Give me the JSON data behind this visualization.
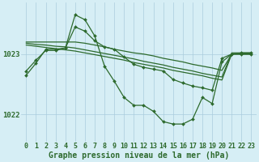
{
  "xlabel": "Graphe pression niveau de la mer (hPa)",
  "hours": [
    0,
    1,
    2,
    3,
    4,
    5,
    6,
    7,
    8,
    9,
    10,
    11,
    12,
    13,
    14,
    15,
    16,
    17,
    18,
    19,
    20,
    21,
    22,
    23
  ],
  "line_zigzag": [
    1022.65,
    1022.85,
    1023.08,
    1023.08,
    1023.1,
    1023.65,
    1023.57,
    1023.3,
    1022.8,
    1022.55,
    1022.28,
    1022.15,
    1022.15,
    1022.05,
    1021.88,
    1021.84,
    1021.84,
    1021.92,
    1022.28,
    1022.18,
    1022.87,
    1023.0,
    1023.02,
    1023.02
  ],
  "line_diag1": [
    1023.2,
    1023.2,
    1023.2,
    1023.2,
    1023.2,
    1023.2,
    1023.18,
    1023.15,
    1023.12,
    1023.08,
    1023.05,
    1023.02,
    1023.0,
    1022.97,
    1022.93,
    1022.9,
    1022.87,
    1022.83,
    1022.8,
    1022.77,
    1022.73,
    1023.0,
    1023.0,
    1023.0
  ],
  "line_diag2": [
    1023.18,
    1023.16,
    1023.15,
    1023.13,
    1023.12,
    1023.1,
    1023.07,
    1023.04,
    1023.01,
    1022.98,
    1022.95,
    1022.92,
    1022.88,
    1022.85,
    1022.82,
    1022.78,
    1022.75,
    1022.72,
    1022.68,
    1022.65,
    1022.62,
    1023.02,
    1023.02,
    1023.02
  ],
  "line_diag3": [
    1023.15,
    1023.13,
    1023.11,
    1023.09,
    1023.07,
    1023.05,
    1023.02,
    1022.99,
    1022.96,
    1022.93,
    1022.9,
    1022.86,
    1022.83,
    1022.8,
    1022.77,
    1022.73,
    1022.7,
    1022.67,
    1022.64,
    1022.6,
    1022.57,
    1023.0,
    1023.0,
    1023.0
  ],
  "line_medium": [
    1022.72,
    1022.9,
    1023.06,
    1023.06,
    1023.1,
    1023.45,
    1023.38,
    1023.22,
    1023.12,
    1023.08,
    1022.95,
    1022.83,
    1022.78,
    1022.75,
    1022.72,
    1022.58,
    1022.52,
    1022.47,
    1022.44,
    1022.4,
    1022.93,
    1023.0,
    1023.0,
    1023.0
  ],
  "bg_color": "#d6eef5",
  "grid_color": "#aaccdd",
  "line_color": "#2d6a2d",
  "marker": "D",
  "marker_size": 2.0,
  "ylim_min": 1021.55,
  "ylim_max": 1023.85,
  "yticks": [
    1022.0,
    1023.0
  ],
  "xlabel_fontsize": 7.0,
  "tick_fontsize": 6.5
}
